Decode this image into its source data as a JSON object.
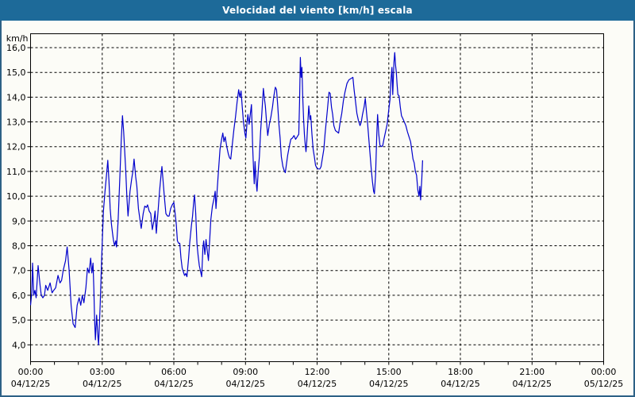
{
  "window": {
    "title": "Velocidad del viento [km/h] escala"
  },
  "colors": {
    "title_bar_bg": "#1d6a99",
    "title_text": "#ffffff",
    "frame_border": "#2d6186",
    "page_bg": "#fcfcf7",
    "plot_border": "#000000",
    "grid": "#000000",
    "axis_label": "#000000",
    "line": "#0000cc"
  },
  "chart_data": {
    "type": "line",
    "title": "Velocidad del viento [km/h] escala",
    "ylabel": "km/h",
    "xlabel": "",
    "grid": "dashed",
    "legend": "none",
    "ylim": [
      3.32,
      16.56
    ],
    "y_ticks": [
      4,
      5,
      6,
      7,
      8,
      9,
      10,
      11,
      12,
      13,
      14,
      15,
      16
    ],
    "y_tick_labels": [
      "4,0",
      "5,0",
      "6,0",
      "7,0",
      "8,0",
      "9,0",
      "10,0",
      "11,0",
      "12,0",
      "13,0",
      "14,0",
      "15,0",
      "16,0"
    ],
    "xlim_minutes": [
      0,
      1440
    ],
    "x_minor_tick_every_minutes": 60,
    "x_gridline_hours": [
      3,
      6,
      9,
      12,
      15,
      18,
      21
    ],
    "x_ticks": [
      {
        "time": "00:00",
        "date": "04/12/25"
      },
      {
        "time": "03:00",
        "date": "04/12/25"
      },
      {
        "time": "06:00",
        "date": "04/12/25"
      },
      {
        "time": "09:00",
        "date": "04/12/25"
      },
      {
        "time": "12:00",
        "date": "04/12/25"
      },
      {
        "time": "15:00",
        "date": "04/12/25"
      },
      {
        "time": "18:00",
        "date": "04/12/25"
      },
      {
        "time": "21:00",
        "date": "04/12/25"
      },
      {
        "time": "00:00",
        "date": "05/12/25"
      }
    ],
    "series": [
      {
        "name": "Velocidad del viento",
        "color": "#0000cc",
        "points": [
          [
            0,
            5.6
          ],
          [
            3,
            6.1
          ],
          [
            5,
            7.3
          ],
          [
            8,
            6.0
          ],
          [
            11,
            6.2
          ],
          [
            14,
            5.9
          ],
          [
            19,
            7.2
          ],
          [
            24,
            6.4
          ],
          [
            27,
            6.0
          ],
          [
            31,
            5.9
          ],
          [
            35,
            6.0
          ],
          [
            38,
            6.4
          ],
          [
            43,
            6.2
          ],
          [
            49,
            6.5
          ],
          [
            54,
            6.1
          ],
          [
            58,
            6.2
          ],
          [
            63,
            6.3
          ],
          [
            69,
            6.8
          ],
          [
            74,
            6.5
          ],
          [
            78,
            6.6
          ],
          [
            82,
            7.0
          ],
          [
            88,
            7.4
          ],
          [
            92,
            7.95
          ],
          [
            97,
            7.0
          ],
          [
            102,
            5.6
          ],
          [
            107,
            4.85
          ],
          [
            112,
            4.7
          ],
          [
            117,
            5.6
          ],
          [
            122,
            5.9
          ],
          [
            126,
            5.6
          ],
          [
            130,
            6.0
          ],
          [
            134,
            5.7
          ],
          [
            139,
            6.3
          ],
          [
            143,
            7.1
          ],
          [
            147,
            6.9
          ],
          [
            151,
            7.5
          ],
          [
            154,
            6.9
          ],
          [
            157,
            7.3
          ],
          [
            159,
            6.3
          ],
          [
            161,
            5.0
          ],
          [
            163,
            4.2
          ],
          [
            166,
            5.2
          ],
          [
            169,
            4.4
          ],
          [
            171,
            4.0
          ],
          [
            175,
            5.6
          ],
          [
            179,
            7.6
          ],
          [
            183,
            9.4
          ],
          [
            187,
            10.2
          ],
          [
            191,
            10.9
          ],
          [
            194,
            11.45
          ],
          [
            197,
            10.6
          ],
          [
            200,
            9.5
          ],
          [
            203,
            8.9
          ],
          [
            206,
            8.5
          ],
          [
            208,
            8.25
          ],
          [
            211,
            8.0
          ],
          [
            214,
            8.2
          ],
          [
            216,
            7.95
          ],
          [
            220,
            9.0
          ],
          [
            224,
            10.6
          ],
          [
            228,
            12.3
          ],
          [
            231,
            13.25
          ],
          [
            234,
            12.6
          ],
          [
            236,
            12.0
          ],
          [
            239,
            11.1
          ],
          [
            242,
            10.0
          ],
          [
            245,
            9.2
          ],
          [
            250,
            10.2
          ],
          [
            254,
            10.7
          ],
          [
            257,
            11.0
          ],
          [
            260,
            11.5
          ],
          [
            264,
            10.8
          ],
          [
            267,
            10.4
          ],
          [
            271,
            9.5
          ],
          [
            274,
            9.15
          ],
          [
            278,
            8.7
          ],
          [
            283,
            9.3
          ],
          [
            287,
            9.6
          ],
          [
            291,
            9.55
          ],
          [
            294,
            9.65
          ],
          [
            298,
            9.4
          ],
          [
            302,
            9.3
          ],
          [
            306,
            8.65
          ],
          [
            310,
            9.0
          ],
          [
            313,
            9.4
          ],
          [
            316,
            8.5
          ],
          [
            320,
            9.3
          ],
          [
            324,
            10.2
          ],
          [
            328,
            10.9
          ],
          [
            330,
            11.2
          ],
          [
            333,
            10.6
          ],
          [
            336,
            10.0
          ],
          [
            340,
            9.3
          ],
          [
            344,
            9.2
          ],
          [
            348,
            9.2
          ],
          [
            352,
            9.5
          ],
          [
            356,
            9.65
          ],
          [
            360,
            9.75
          ],
          [
            364,
            9.2
          ],
          [
            366,
            8.9
          ],
          [
            369,
            8.2
          ],
          [
            372,
            8.1
          ],
          [
            375,
            8.1
          ],
          [
            378,
            7.5
          ],
          [
            381,
            7.1
          ],
          [
            384,
            6.95
          ],
          [
            387,
            6.8
          ],
          [
            390,
            6.88
          ],
          [
            393,
            6.75
          ],
          [
            397,
            7.5
          ],
          [
            400,
            8.15
          ],
          [
            404,
            8.8
          ],
          [
            407,
            9.2
          ],
          [
            410,
            9.8
          ],
          [
            412,
            10.05
          ],
          [
            415,
            9.3
          ],
          [
            418,
            8.1
          ],
          [
            421,
            7.6
          ],
          [
            424,
            7.2
          ],
          [
            428,
            6.9
          ],
          [
            430,
            6.75
          ],
          [
            433,
            7.9
          ],
          [
            435,
            8.2
          ],
          [
            438,
            7.65
          ],
          [
            441,
            8.25
          ],
          [
            444,
            7.8
          ],
          [
            447,
            7.4
          ],
          [
            450,
            8.2
          ],
          [
            453,
            9.05
          ],
          [
            457,
            9.6
          ],
          [
            461,
            9.9
          ],
          [
            464,
            10.2
          ],
          [
            466,
            9.5
          ],
          [
            469,
            10.3
          ],
          [
            472,
            11.0
          ],
          [
            476,
            11.9
          ],
          [
            480,
            12.3
          ],
          [
            483,
            12.55
          ],
          [
            486,
            12.2
          ],
          [
            489,
            12.4
          ],
          [
            493,
            12.0
          ],
          [
            497,
            11.7
          ],
          [
            500,
            11.55
          ],
          [
            503,
            11.5
          ],
          [
            507,
            12.1
          ],
          [
            511,
            12.7
          ],
          [
            515,
            13.2
          ],
          [
            519,
            13.8
          ],
          [
            523,
            14.3
          ],
          [
            526,
            14.0
          ],
          [
            529,
            14.25
          ],
          [
            532,
            13.6
          ],
          [
            535,
            13.0
          ],
          [
            539,
            12.5
          ],
          [
            541,
            12.35
          ],
          [
            544,
            13.0
          ],
          [
            546,
            13.3
          ],
          [
            549,
            12.9
          ],
          [
            552,
            13.3
          ],
          [
            555,
            13.7
          ],
          [
            558,
            12.0
          ],
          [
            560,
            11.2
          ],
          [
            562,
            10.5
          ],
          [
            564,
            11.4
          ],
          [
            567,
            10.55
          ],
          [
            569,
            10.2
          ],
          [
            572,
            11.0
          ],
          [
            575,
            11.6
          ],
          [
            578,
            12.6
          ],
          [
            581,
            13.3
          ],
          [
            585,
            14.35
          ],
          [
            588,
            13.9
          ],
          [
            590,
            13.65
          ],
          [
            593,
            13.0
          ],
          [
            596,
            12.45
          ],
          [
            600,
            12.9
          ],
          [
            604,
            13.2
          ],
          [
            608,
            13.6
          ],
          [
            611,
            14.0
          ],
          [
            615,
            14.4
          ],
          [
            618,
            14.3
          ],
          [
            621,
            13.65
          ],
          [
            624,
            12.9
          ],
          [
            627,
            12.35
          ],
          [
            630,
            11.6
          ],
          [
            634,
            11.2
          ],
          [
            637,
            11.05
          ],
          [
            640,
            10.95
          ],
          [
            643,
            11.3
          ],
          [
            646,
            11.65
          ],
          [
            650,
            12.0
          ],
          [
            654,
            12.3
          ],
          [
            658,
            12.35
          ],
          [
            662,
            12.45
          ],
          [
            666,
            12.3
          ],
          [
            670,
            12.4
          ],
          [
            674,
            12.5
          ],
          [
            676,
            13.8
          ],
          [
            678,
            15.6
          ],
          [
            680,
            14.8
          ],
          [
            682,
            15.2
          ],
          [
            684,
            14.0
          ],
          [
            686,
            13.1
          ],
          [
            688,
            12.5
          ],
          [
            690,
            12.1
          ],
          [
            692,
            11.8
          ],
          [
            694,
            12.2
          ],
          [
            696,
            12.8
          ],
          [
            699,
            13.65
          ],
          [
            702,
            13.1
          ],
          [
            704,
            13.25
          ],
          [
            707,
            12.5
          ],
          [
            710,
            11.9
          ],
          [
            713,
            11.6
          ],
          [
            716,
            11.25
          ],
          [
            719,
            11.15
          ],
          [
            723,
            11.1
          ],
          [
            727,
            11.1
          ],
          [
            730,
            11.2
          ],
          [
            734,
            11.6
          ],
          [
            737,
            11.9
          ],
          [
            740,
            12.5
          ],
          [
            743,
            13.0
          ],
          [
            746,
            13.5
          ],
          [
            750,
            14.2
          ],
          [
            753,
            14.15
          ],
          [
            756,
            13.6
          ],
          [
            759,
            13.3
          ],
          [
            762,
            12.85
          ],
          [
            766,
            12.65
          ],
          [
            770,
            12.6
          ],
          [
            774,
            12.55
          ],
          [
            778,
            13.0
          ],
          [
            782,
            13.35
          ],
          [
            786,
            13.85
          ],
          [
            790,
            14.2
          ],
          [
            795,
            14.55
          ],
          [
            800,
            14.7
          ],
          [
            805,
            14.75
          ],
          [
            810,
            14.8
          ],
          [
            813,
            14.3
          ],
          [
            816,
            13.9
          ],
          [
            820,
            13.35
          ],
          [
            824,
            13.05
          ],
          [
            828,
            12.85
          ],
          [
            831,
            13.0
          ],
          [
            834,
            13.3
          ],
          [
            838,
            13.6
          ],
          [
            841,
            13.95
          ],
          [
            844,
            13.4
          ],
          [
            847,
            12.9
          ],
          [
            850,
            12.3
          ],
          [
            853,
            11.7
          ],
          [
            856,
            11.1
          ],
          [
            859,
            10.6
          ],
          [
            862,
            10.2
          ],
          [
            864,
            10.1
          ],
          [
            867,
            10.9
          ],
          [
            870,
            12.5
          ],
          [
            872,
            13.3
          ],
          [
            875,
            12.5
          ],
          [
            878,
            12.05
          ],
          [
            882,
            12.0
          ],
          [
            885,
            12.05
          ],
          [
            888,
            12.3
          ],
          [
            892,
            12.6
          ],
          [
            896,
            12.9
          ],
          [
            900,
            13.5
          ],
          [
            903,
            13.9
          ],
          [
            906,
            14.8
          ],
          [
            908,
            15.2
          ],
          [
            910,
            14.1
          ],
          [
            913,
            15.4
          ],
          [
            915,
            15.8
          ],
          [
            917,
            15.3
          ],
          [
            919,
            15.0
          ],
          [
            921,
            14.5
          ],
          [
            923,
            14.1
          ],
          [
            926,
            14.05
          ],
          [
            929,
            13.6
          ],
          [
            932,
            13.25
          ],
          [
            935,
            13.15
          ],
          [
            939,
            13.0
          ],
          [
            943,
            12.85
          ],
          [
            947,
            12.6
          ],
          [
            951,
            12.4
          ],
          [
            955,
            12.2
          ],
          [
            958,
            11.85
          ],
          [
            961,
            11.5
          ],
          [
            964,
            11.35
          ],
          [
            967,
            11.0
          ],
          [
            970,
            10.85
          ],
          [
            973,
            10.25
          ],
          [
            976,
            10.0
          ],
          [
            978,
            10.4
          ],
          [
            980,
            9.85
          ],
          [
            983,
            10.7
          ],
          [
            985,
            11.45
          ]
        ]
      }
    ]
  }
}
